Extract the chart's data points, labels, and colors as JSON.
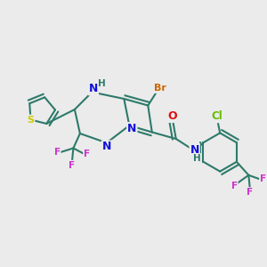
{
  "bg_color": "#ebebeb",
  "bond_color": "#2d7a6a",
  "bond_width": 1.5,
  "atom_colors": {
    "Br": "#cc6600",
    "N": "#1010dd",
    "O": "#dd1111",
    "H": "#2d7a6a",
    "F": "#cc33cc",
    "Cl": "#66bb00",
    "S": "#cccc00",
    "C": "#2d7a6a"
  },
  "font_size": 8.5,
  "title": ""
}
